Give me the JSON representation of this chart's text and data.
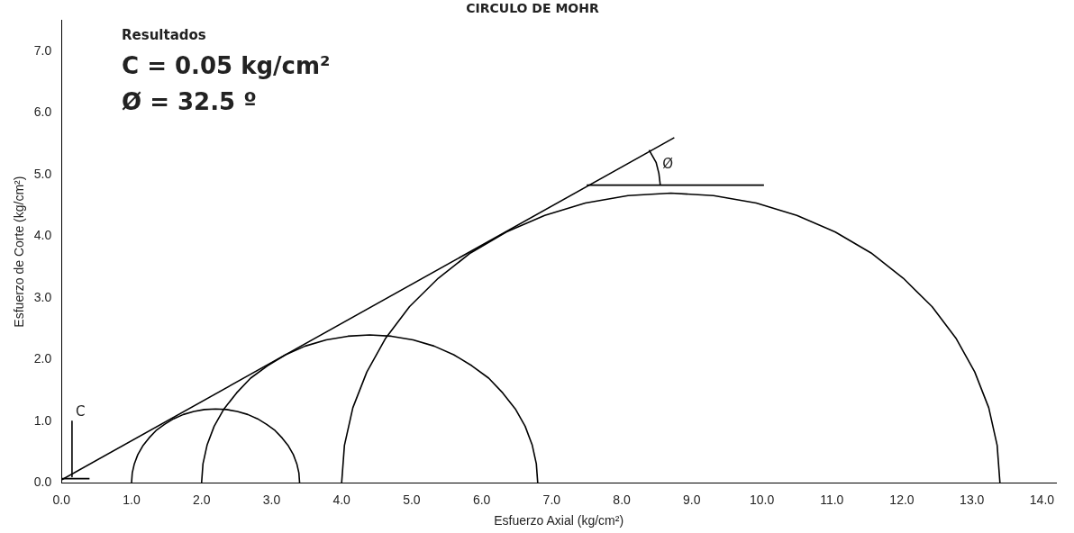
{
  "chart_data": {
    "type": "line",
    "title": "CIRCULO DE MOHR",
    "xlabel": "Esfuerzo Axial (kg/cm²)",
    "ylabel": "Esfuerzo de Corte (kg/cm²)",
    "xlim": [
      0,
      14.2
    ],
    "ylim": [
      0,
      7.5
    ],
    "xticks": [
      {
        "value": 0,
        "label": "0.0"
      },
      {
        "value": 1,
        "label": "1.0"
      },
      {
        "value": 2,
        "label": "2.0"
      },
      {
        "value": 3,
        "label": "3.0"
      },
      {
        "value": 4,
        "label": "4.0"
      },
      {
        "value": 5,
        "label": "5.0"
      },
      {
        "value": 6,
        "label": "6.0"
      },
      {
        "value": 7,
        "label": "7.0"
      },
      {
        "value": 8,
        "label": "8.0"
      },
      {
        "value": 9,
        "label": "9.0"
      },
      {
        "value": 10,
        "label": "10.0"
      },
      {
        "value": 11,
        "label": "11.0"
      },
      {
        "value": 12,
        "label": "12.0"
      },
      {
        "value": 13,
        "label": "13.0"
      },
      {
        "value": 14,
        "label": "14.0"
      }
    ],
    "yticks": [
      {
        "value": 0,
        "label": "0.0"
      },
      {
        "value": 1,
        "label": "1.0"
      },
      {
        "value": 2,
        "label": "2.0"
      },
      {
        "value": 3,
        "label": "3.0"
      },
      {
        "value": 4,
        "label": "4.0"
      },
      {
        "value": 5,
        "label": "5.0"
      },
      {
        "value": 6,
        "label": "6.0"
      },
      {
        "value": 7,
        "label": "7.0"
      }
    ],
    "grid": false,
    "legend": false,
    "marker": "none",
    "line_style": "solid",
    "series": [
      {
        "color": "#000000",
        "x": [
          1.0,
          1.01,
          1.04,
          1.09,
          1.16,
          1.25,
          1.35,
          1.47,
          1.6,
          1.74,
          1.89,
          2.04,
          2.2,
          2.36,
          2.51,
          2.66,
          2.8,
          2.93,
          3.05,
          3.15,
          3.24,
          3.31,
          3.36,
          3.39,
          3.4
        ],
        "values": [
          0,
          0.16,
          0.31,
          0.46,
          0.6,
          0.73,
          0.85,
          0.95,
          1.04,
          1.11,
          1.16,
          1.19,
          1.2,
          1.19,
          1.16,
          1.11,
          1.04,
          0.95,
          0.85,
          0.73,
          0.6,
          0.46,
          0.31,
          0.16,
          0
        ]
      },
      {
        "color": "#000000",
        "x": [
          2.0,
          2.02,
          2.08,
          2.18,
          2.32,
          2.5,
          2.7,
          2.94,
          3.2,
          3.48,
          3.78,
          4.09,
          4.4,
          4.71,
          5.02,
          5.32,
          5.6,
          5.86,
          6.1,
          6.3,
          6.48,
          6.62,
          6.72,
          6.78,
          6.8
        ],
        "values": [
          0,
          0.31,
          0.62,
          0.92,
          1.2,
          1.46,
          1.7,
          1.9,
          2.08,
          2.22,
          2.32,
          2.38,
          2.4,
          2.38,
          2.32,
          2.22,
          2.08,
          1.9,
          1.7,
          1.46,
          1.2,
          0.92,
          0.62,
          0.31,
          0
        ]
      },
      {
        "color": "#000000",
        "x": [
          4.0,
          4.04,
          4.16,
          4.36,
          4.63,
          4.97,
          5.38,
          5.84,
          6.35,
          6.9,
          7.48,
          8.09,
          8.7,
          9.31,
          9.92,
          10.5,
          11.05,
          11.56,
          12.02,
          12.43,
          12.77,
          13.04,
          13.24,
          13.36,
          13.4
        ],
        "values": [
          0,
          0.61,
          1.22,
          1.8,
          2.35,
          2.86,
          3.32,
          3.73,
          4.07,
          4.34,
          4.54,
          4.66,
          4.7,
          4.66,
          4.54,
          4.34,
          4.07,
          3.73,
          3.32,
          2.86,
          2.35,
          1.8,
          1.22,
          0.61,
          0
        ]
      },
      {
        "color": "#000000",
        "x": [
          0,
          8.75
        ],
        "values": [
          0.05,
          5.6
        ]
      },
      {
        "color": "#000000",
        "x": [
          7.5,
          10.03
        ],
        "values": [
          4.83,
          4.83
        ]
      },
      {
        "color": "#000000",
        "x": [
          8.55,
          8.53,
          8.49,
          8.39
        ],
        "values": [
          4.83,
          5.02,
          5.2,
          5.4
        ]
      },
      {
        "color": "#000000",
        "x": [
          0,
          0.4
        ],
        "values": [
          0.07,
          0.07
        ]
      },
      {
        "color": "#000000",
        "x": [
          0.15,
          0.15
        ],
        "values": [
          1.0,
          0.1
        ]
      }
    ],
    "annotations": [
      "Resultados",
      "C = 0.05 kg/cm²",
      "Ø = 32.5 º",
      {
        "text": "Ø",
        "x": 8.53,
        "y": 5.02
      },
      {
        "text": "C",
        "x": 0.15,
        "y": 1.0
      }
    ]
  }
}
